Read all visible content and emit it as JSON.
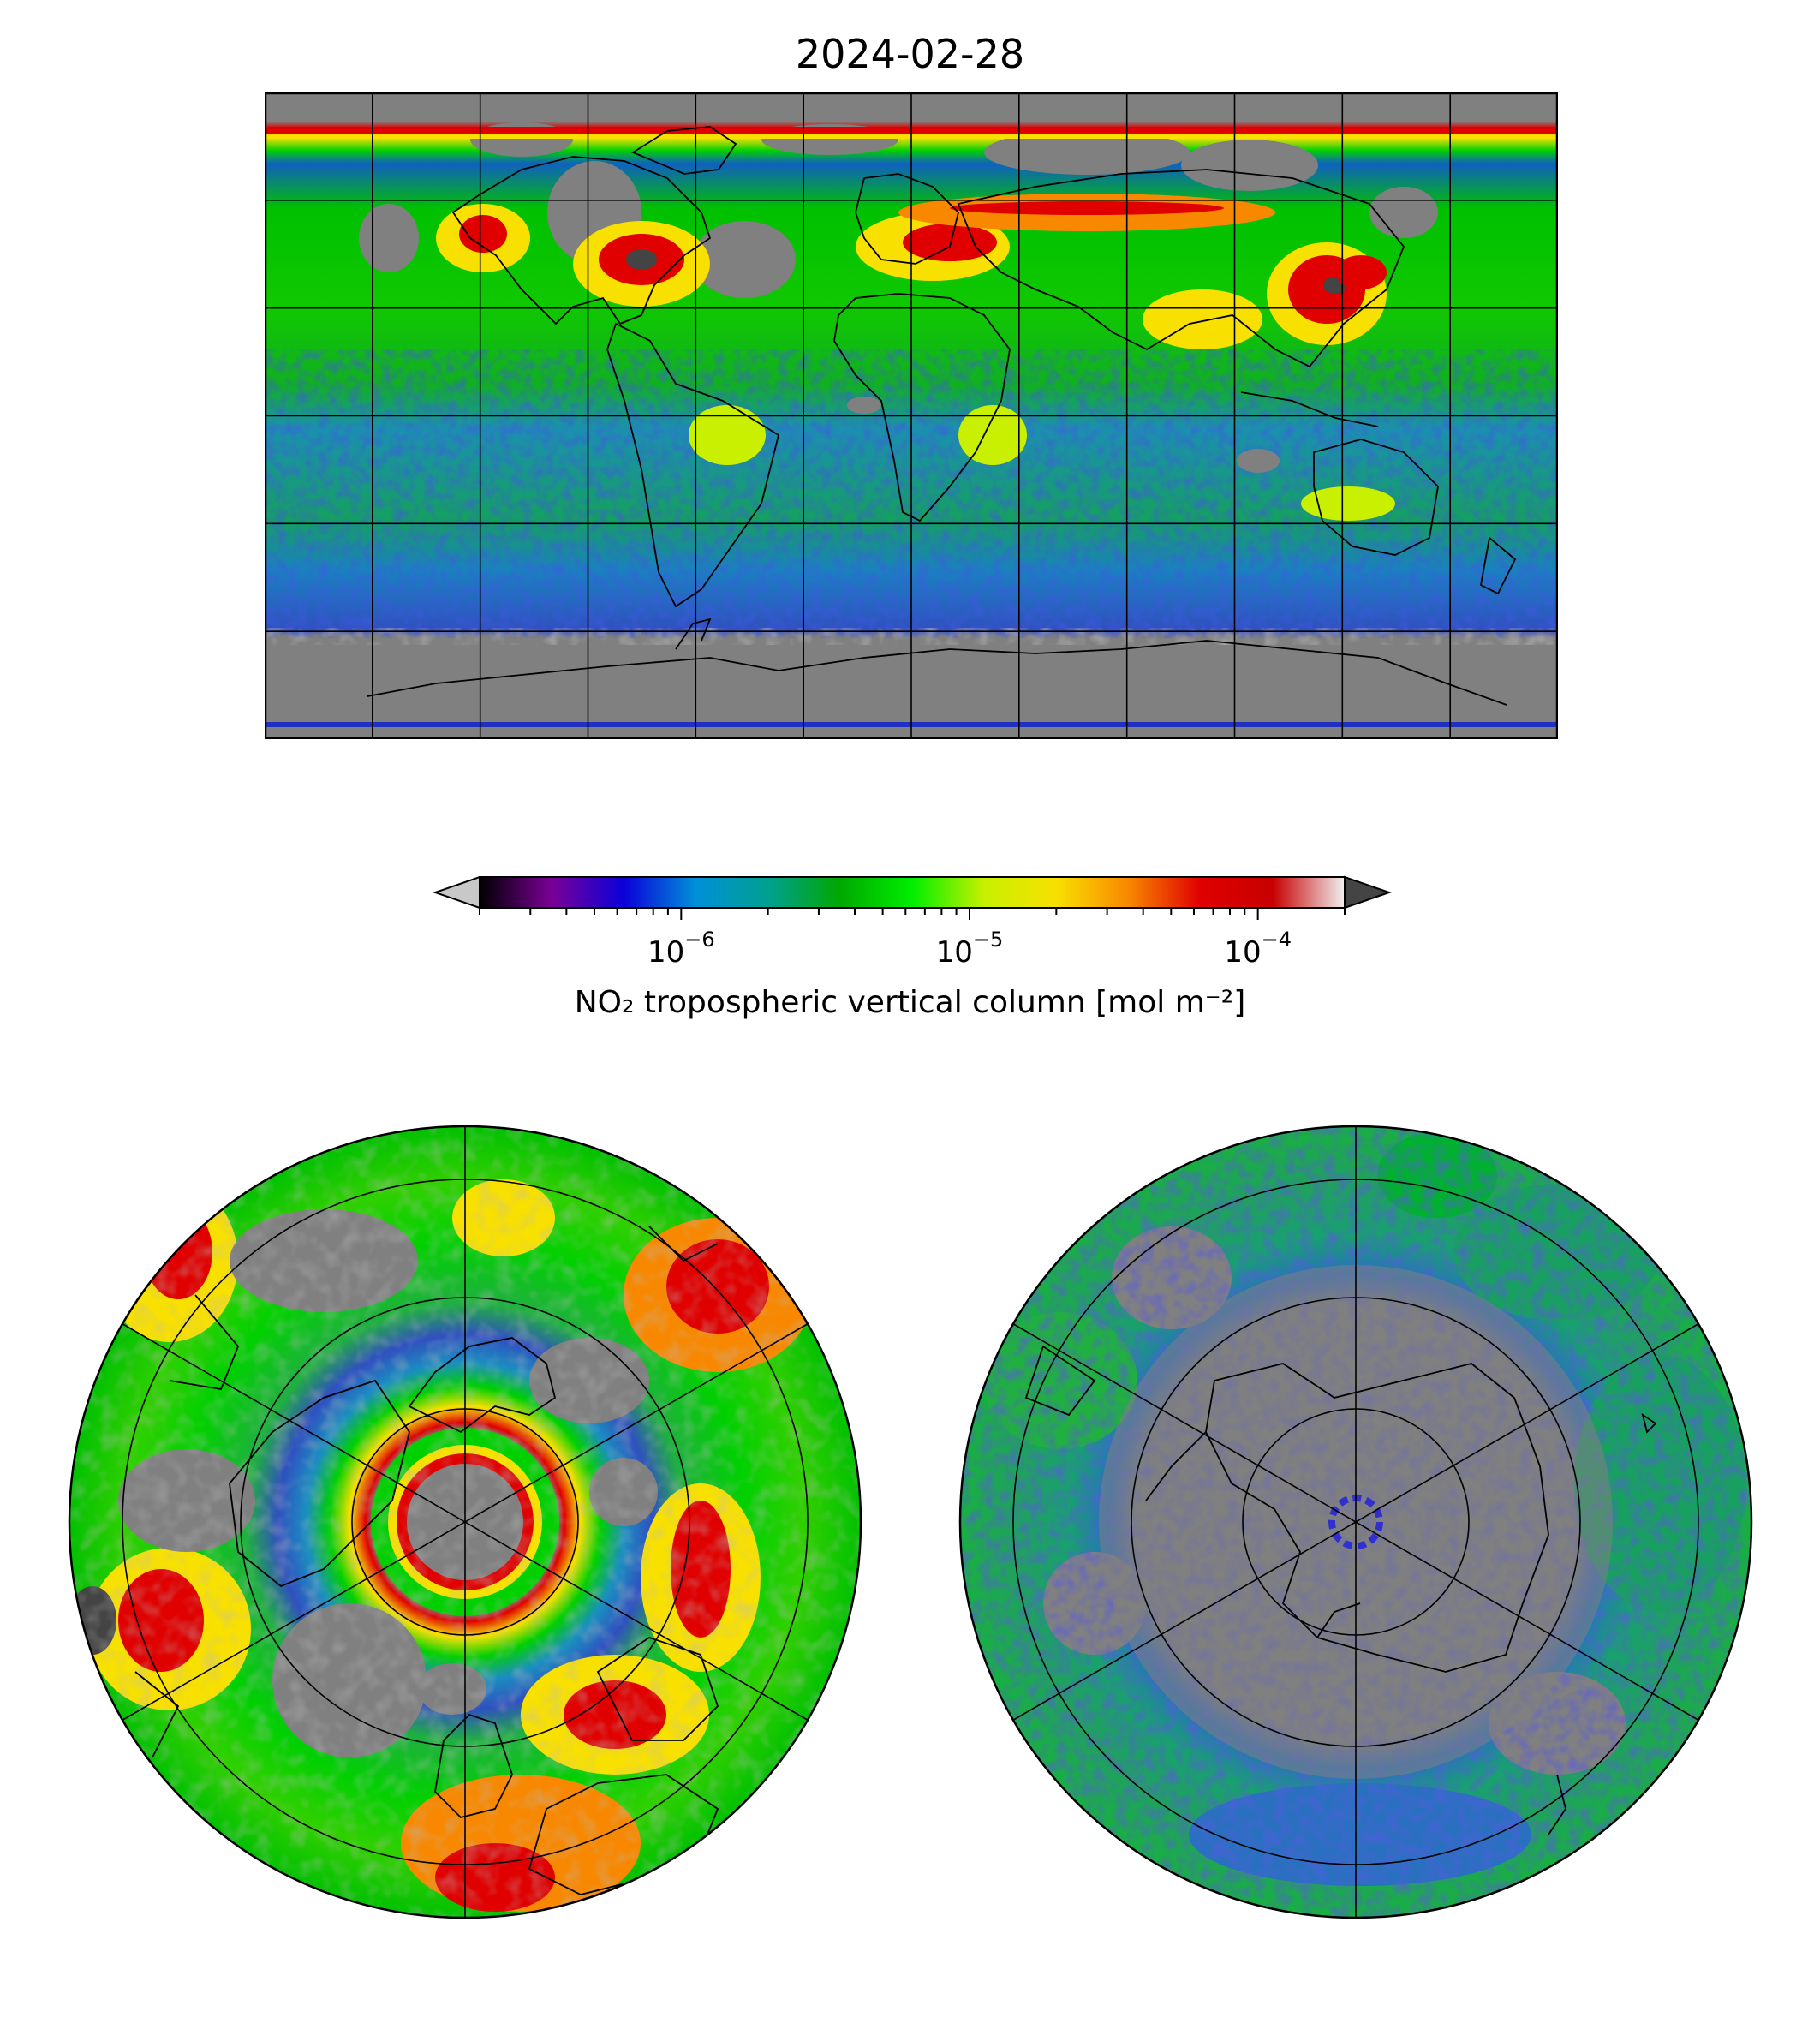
{
  "title": "2024-02-28",
  "colorbar": {
    "label": "NO₂ tropospheric vertical column [mol m⁻²]",
    "scale": "log",
    "range": [
      2e-07,
      0.0002
    ],
    "extend": "both",
    "ticks": [
      {
        "base": "10",
        "exp": "−6",
        "value": 1e-06
      },
      {
        "base": "10",
        "exp": "−5",
        "value": 1e-05
      },
      {
        "base": "10",
        "exp": "−4",
        "value": 0.0001
      }
    ],
    "colormap": [
      "#000000",
      "#7a0096",
      "#0a00d8",
      "#0090d8",
      "#00a090",
      "#00a800",
      "#00ee00",
      "#c8f000",
      "#f8e000",
      "#f88800",
      "#e00000",
      "#c80000",
      "#f0f0f0"
    ],
    "under_color": "#c8c8c8",
    "over_color": "#444444",
    "nodata_color": "#808080"
  },
  "maps": [
    {
      "name": "global",
      "projection": "plate-carree",
      "gridlines": true
    },
    {
      "name": "north-polar",
      "projection": "north-polar-stereographic",
      "gridlines": true
    },
    {
      "name": "south-polar",
      "projection": "south-polar-stereographic",
      "gridlines": true
    }
  ]
}
